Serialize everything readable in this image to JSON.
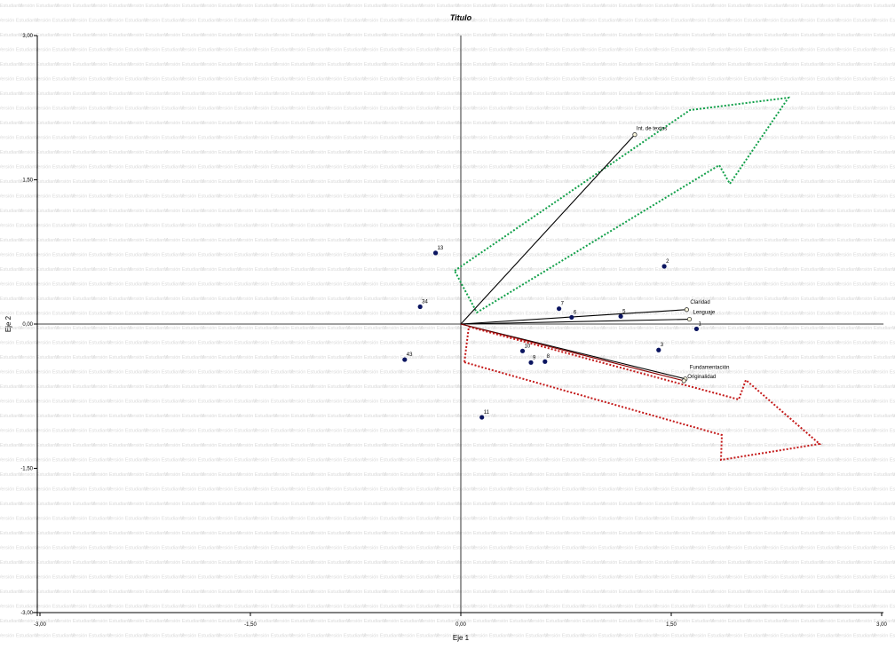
{
  "chart_data": {
    "type": "scatter",
    "subtype": "biplot",
    "title": "Titulo",
    "xlabel": "Eje 1",
    "ylabel": "Eje 2",
    "xlim": [
      -3.0,
      3.0
    ],
    "ylim": [
      -3.0,
      3.0
    ],
    "x_ticks": [
      {
        "value": -3.0,
        "label": "-3,00"
      },
      {
        "value": -1.5,
        "label": "-1,50"
      },
      {
        "value": 0.0,
        "label": "0,00"
      },
      {
        "value": 1.5,
        "label": "1,50"
      },
      {
        "value": 3.0,
        "label": "3,00"
      }
    ],
    "y_ticks": [
      {
        "value": 3.0,
        "label": "3,00"
      },
      {
        "value": 1.5,
        "label": "1,50"
      },
      {
        "value": 0.0,
        "label": "0,00"
      },
      {
        "value": -1.5,
        "label": "-1,50"
      },
      {
        "value": -3.0,
        "label": "-3,00"
      }
    ],
    "watermark_text": "Versión Estudiantil",
    "points": [
      {
        "label": "1",
        "x": 1.68,
        "y": -0.05
      },
      {
        "label": "2",
        "x": 1.45,
        "y": 0.6
      },
      {
        "label": "3",
        "x": 1.41,
        "y": -0.27
      },
      {
        "label": "5",
        "x": 1.14,
        "y": 0.08
      },
      {
        "label": "6",
        "x": 0.79,
        "y": 0.07
      },
      {
        "label": "7",
        "x": 0.7,
        "y": 0.16
      },
      {
        "label": "8",
        "x": 0.6,
        "y": -0.39
      },
      {
        "label": "9",
        "x": 0.5,
        "y": -0.4
      },
      {
        "label": "10",
        "x": 0.44,
        "y": -0.28
      },
      {
        "label": "11",
        "x": 0.15,
        "y": -0.97
      },
      {
        "label": "13",
        "x": -0.18,
        "y": 0.74
      },
      {
        "label": "34",
        "x": -0.29,
        "y": 0.18
      },
      {
        "label": "43",
        "x": -0.4,
        "y": -0.37
      }
    ],
    "variables": [
      {
        "label": "Int. de textos",
        "x": 1.24,
        "y": 1.97
      },
      {
        "label": "Claridad",
        "x": 1.61,
        "y": 0.15
      },
      {
        "label": "Lenguaje",
        "x": 1.63,
        "y": 0.05
      },
      {
        "label": "Fundamentación",
        "x": 1.6,
        "y": -0.57
      },
      {
        "label": "Originalidad",
        "x": 1.59,
        "y": -0.59
      }
    ],
    "grid": false,
    "legend": "none",
    "colors": {
      "point": "#0b1560",
      "vector": "#000000",
      "highlight_vector": "#8b0000",
      "green_arrow": "#12a04a",
      "red_arrow": "#c41a1a",
      "watermark": "#d9d9d9"
    }
  }
}
